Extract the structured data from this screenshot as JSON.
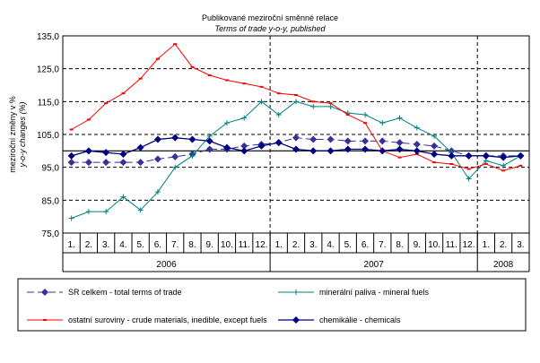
{
  "chart_data": {
    "type": "line",
    "title": "Publikované meziroční směnné relace",
    "subtitle": "Terms of trade y-o-y, published",
    "ylabel": [
      "meziroční změny v %",
      "y-o-y changes (%)"
    ],
    "ylim": [
      75,
      135
    ],
    "yticks": [
      "75,0",
      "85,0",
      "95,0",
      "105,0",
      "115,0",
      "125,0",
      "135,0"
    ],
    "ytick_values": [
      75,
      85,
      95,
      105,
      115,
      125,
      135
    ],
    "reference_line": 100,
    "categories": [
      "1.",
      "2.",
      "3.",
      "4.",
      "5.",
      "6.",
      "7.",
      "8.",
      "9.",
      "10.",
      "11.",
      "12.",
      "1.",
      "2.",
      "3.",
      "4.",
      "5.",
      "6.",
      "7.",
      "8.",
      "9.",
      "10.",
      "11.",
      "12.",
      "1.",
      "2.",
      "3."
    ],
    "years": [
      {
        "label": "2006",
        "months": 12
      },
      {
        "label": "2007",
        "months": 12
      },
      {
        "label": "2008",
        "months": 3
      }
    ],
    "series": [
      {
        "name": "SR celkem - total terms of trade",
        "color": "#333399",
        "style": "dashed-diamond",
        "values": [
          96.5,
          96.5,
          96.5,
          96.5,
          96.5,
          97.5,
          98.2,
          99,
          100.5,
          100.5,
          101.5,
          102,
          102.5,
          104,
          103.5,
          103.5,
          103,
          103,
          103,
          102.5,
          102,
          101.5,
          100,
          98.5,
          98.5,
          98.5,
          98.5
        ]
      },
      {
        "name": "minerální paliva - mineral fuels",
        "color": "#008080",
        "style": "plus",
        "values": [
          79.5,
          81.5,
          81.5,
          86,
          82,
          87.5,
          95,
          98.5,
          104.5,
          108.5,
          110,
          115,
          111,
          115,
          113.5,
          113.5,
          111.5,
          111,
          108.5,
          110,
          107,
          104.5,
          99.5,
          91.5,
          97,
          95.5,
          98.5
        ]
      },
      {
        "name": "ostatní suroviny - crude materials, inedible, except fuels",
        "color": "#ff0000",
        "style": "dash-marker",
        "values": [
          106.5,
          109.5,
          114.5,
          117.5,
          122,
          128,
          132.5,
          125.5,
          123,
          121.5,
          120.5,
          119.5,
          117.5,
          117,
          115,
          114.5,
          111,
          108.5,
          100,
          98,
          99,
          96.5,
          96,
          94.5,
          96,
          94,
          95.5
        ]
      },
      {
        "name": "chemikálie - chemicals",
        "color": "#000080",
        "style": "solid-diamond",
        "values": [
          98.5,
          100,
          99.5,
          99,
          101,
          103.5,
          104,
          103.5,
          103,
          101,
          100,
          101.5,
          102.5,
          100.5,
          100,
          100,
          100.5,
          100.5,
          100,
          100.5,
          100,
          99,
          98.5,
          98.5,
          98.5,
          98,
          98.5
        ]
      }
    ]
  }
}
